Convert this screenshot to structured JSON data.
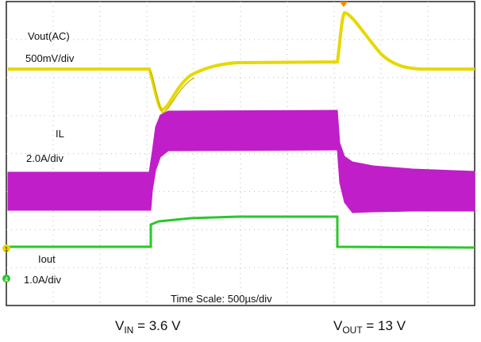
{
  "screen": {
    "channels": [
      {
        "name": "Vout(AC)",
        "scale": "500mV/div"
      },
      {
        "name": "IL",
        "scale": "2.0A/div"
      },
      {
        "name": "Iout",
        "scale": "1.0A/div"
      }
    ],
    "markers": [
      "1",
      "4"
    ],
    "time_scale": "Time Scale: 500µs/div"
  },
  "conditions": [
    {
      "symbol": "V",
      "subscript": "IN",
      "value": " = 3.6 V"
    },
    {
      "symbol": "V",
      "subscript": "OUT",
      "value": " = 13 V"
    }
  ]
}
